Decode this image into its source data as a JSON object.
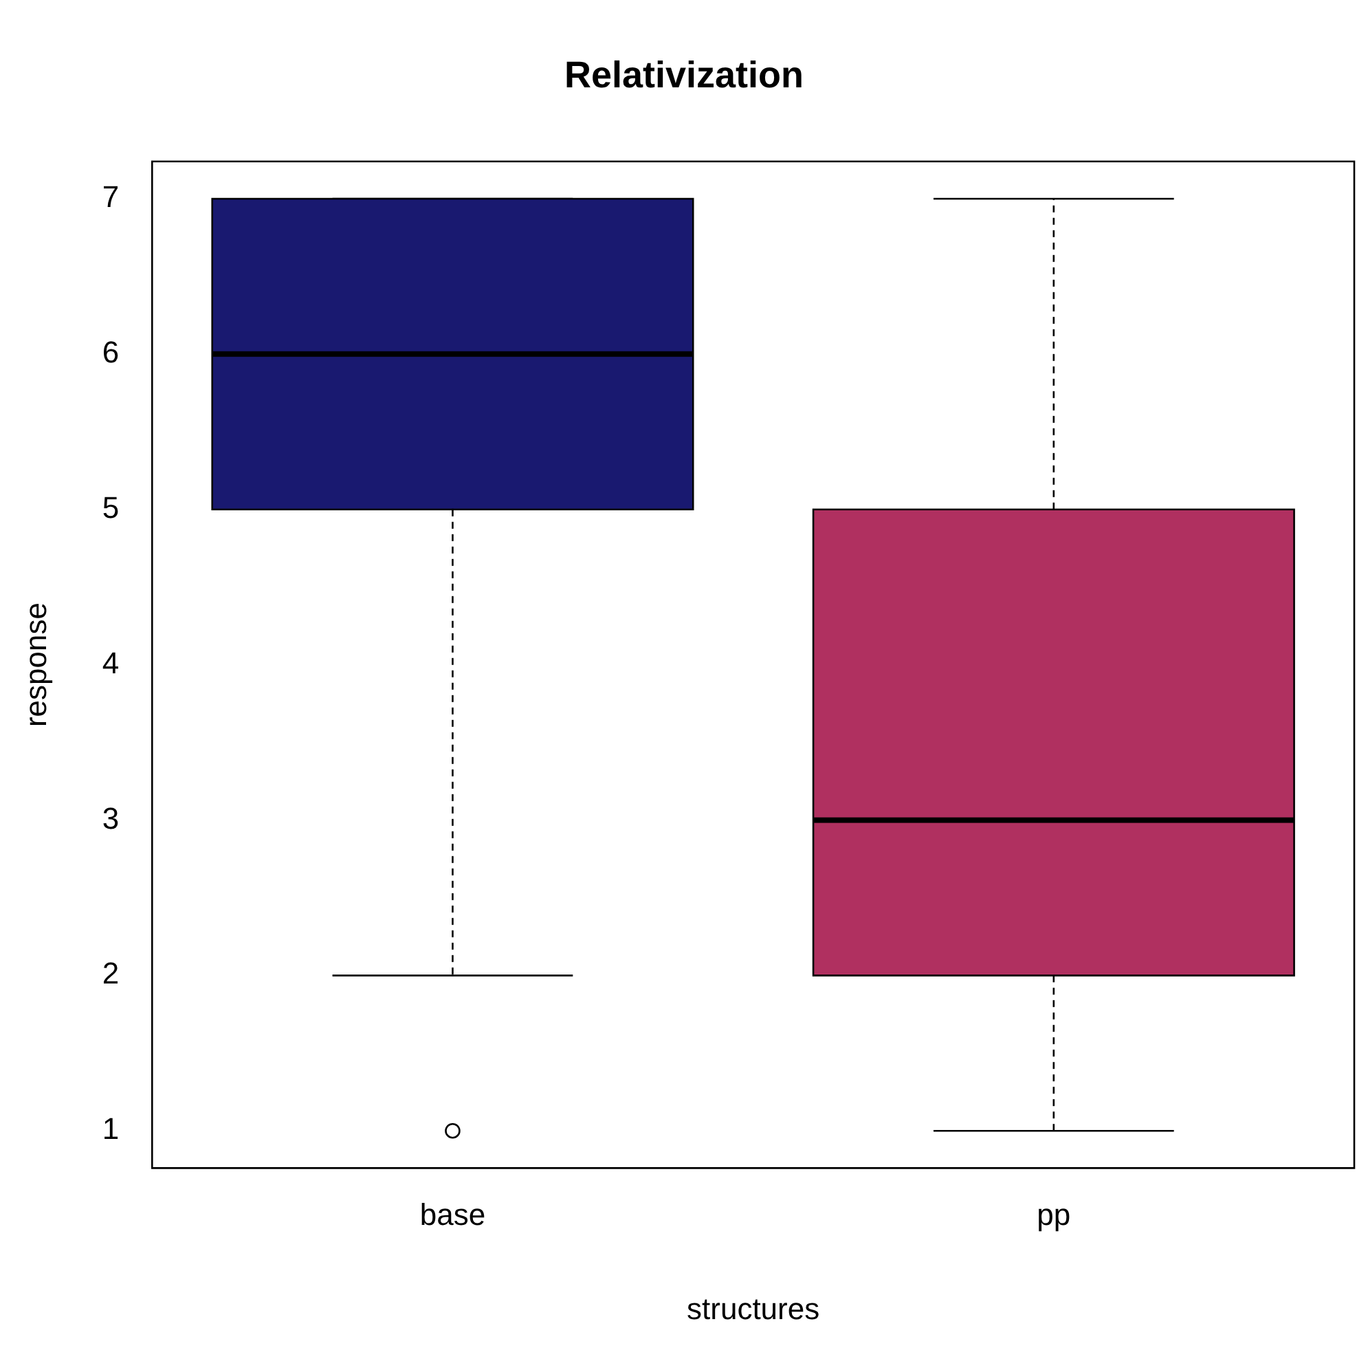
{
  "chart_data": {
    "type": "box",
    "title": "Relativization",
    "xlabel": "structures",
    "ylabel": "response",
    "categories": [
      "base",
      "pp"
    ],
    "colors": [
      "#191970",
      "#b03060"
    ],
    "boxes": [
      {
        "low": 2,
        "q1": 5,
        "median": 6,
        "q3": 7,
        "high": 7,
        "outliers": [
          1
        ]
      },
      {
        "low": 1,
        "q1": 2,
        "median": 3,
        "q3": 5,
        "high": 7
      }
    ],
    "ylim": [
      0.76,
      7.24
    ],
    "yticks": [
      1,
      2,
      3,
      4,
      5,
      6,
      7
    ],
    "grid": false,
    "legend": false
  }
}
